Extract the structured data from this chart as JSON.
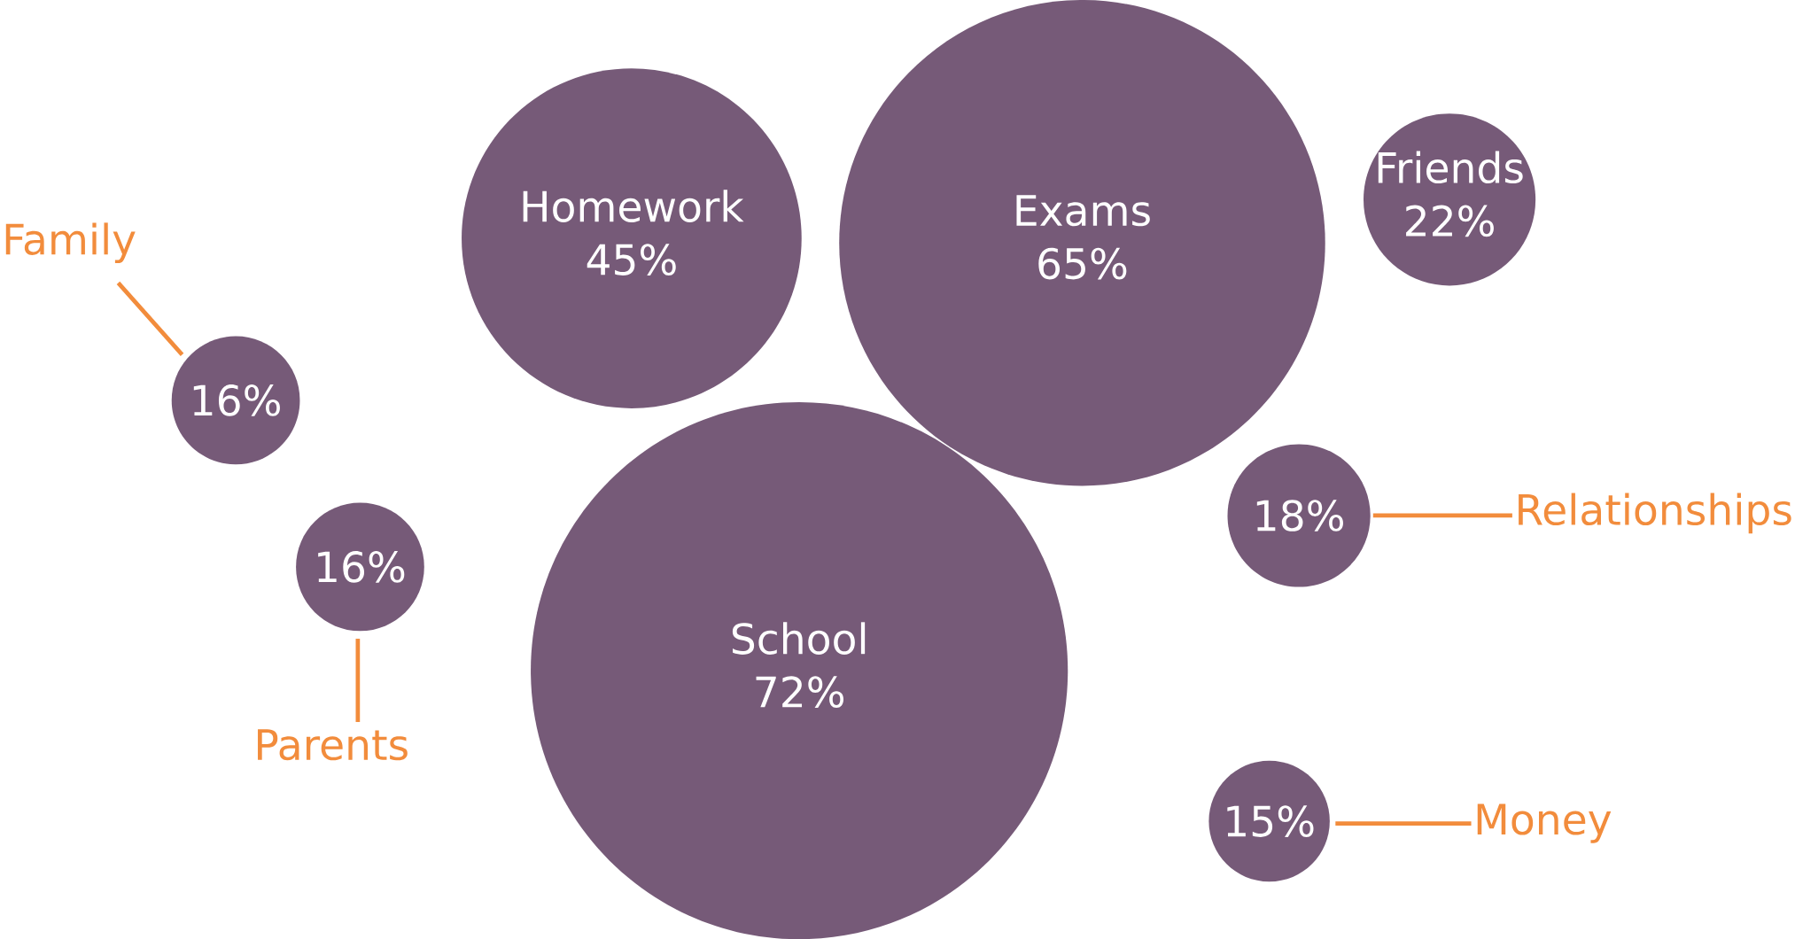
{
  "chart_data": {
    "type": "other",
    "categories": [
      "Homework",
      "Exams",
      "Friends",
      "Family",
      "Parents",
      "School",
      "Relationships",
      "Money"
    ],
    "values": [
      45,
      65,
      22,
      16,
      16,
      72,
      18,
      15
    ],
    "value_labels": [
      "45%",
      "65%",
      "22%",
      "16%",
      "16%",
      "72%",
      "18%",
      "15%"
    ],
    "colors": [
      "#765a78",
      "#765a78",
      "#765a78",
      "#765a78",
      "#765a78",
      "#765a78",
      "#765a78",
      "#765a78"
    ]
  }
}
